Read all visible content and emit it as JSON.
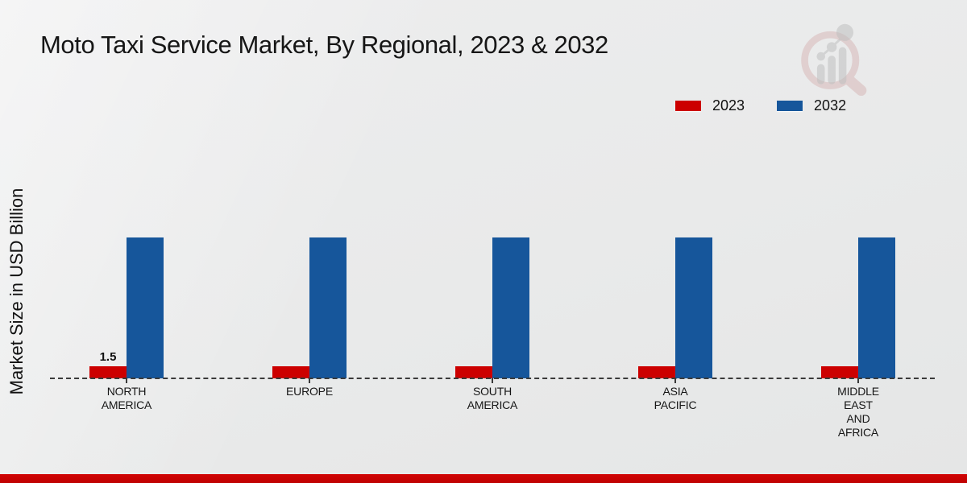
{
  "chart_data": {
    "type": "bar",
    "title": "Moto Taxi Service Market, By Regional, 2023 & 2032",
    "xlabel": "",
    "ylabel": "Market Size in USD Billion",
    "categories": [
      "North America",
      "Europe",
      "South America",
      "Asia Pacific",
      "Middle East and Africa"
    ],
    "category_display": [
      [
        "NORTH",
        "AMERICA"
      ],
      [
        "EUROPE"
      ],
      [
        "SOUTH",
        "AMERICA"
      ],
      [
        "ASIA",
        "PACIFIC"
      ],
      [
        "MIDDLE",
        "EAST",
        "AND",
        "AFRICA"
      ]
    ],
    "series": [
      {
        "name": "2023",
        "color": "#cc0000",
        "values": [
          1.5,
          1.5,
          1.5,
          1.5,
          1.5
        ],
        "data_labels": [
          "1.5",
          null,
          null,
          null,
          null
        ]
      },
      {
        "name": "2032",
        "color": "#16569b",
        "values": [
          17.5,
          17.5,
          17.5,
          17.5,
          17.5
        ],
        "data_labels": [
          null,
          null,
          null,
          null,
          null
        ]
      }
    ],
    "ylim": [
      0,
      20
    ],
    "grid": false,
    "baseline_style": "dashed",
    "legend_position": "top-right"
  },
  "watermark": {
    "name": "market-research-future-logo",
    "ring_color": "#d5b3b3",
    "bars_color": "#c6c6c6"
  },
  "footer": {
    "band_color": "#bf0101"
  }
}
